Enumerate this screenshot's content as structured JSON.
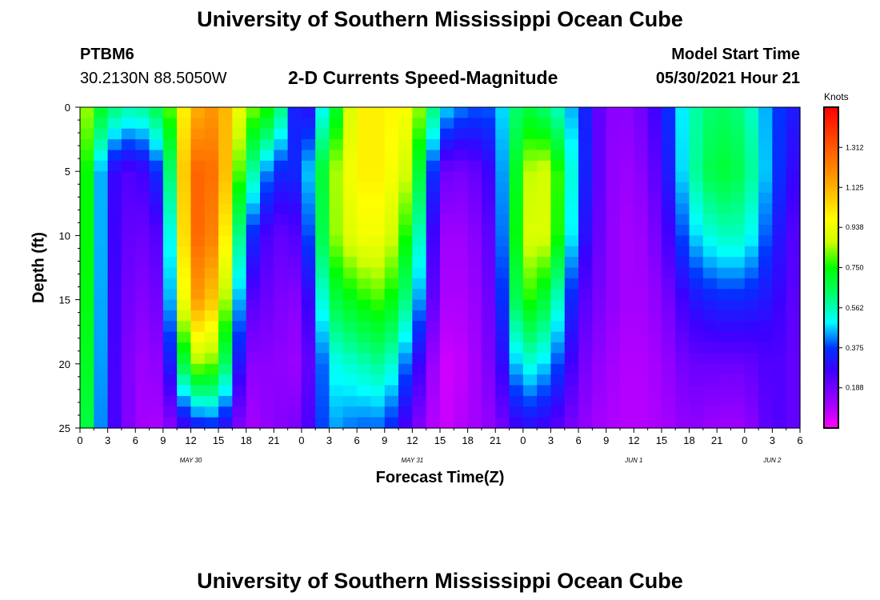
{
  "page": {
    "title_top": "University of Southern Mississippi Ocean Cube",
    "title_bottom": "University of Southern Mississippi Ocean Cube",
    "station_id": "PTBM6",
    "coordinates": "30.2130N  88.5050W",
    "product_title": "2-D Currents Speed-Magnitude",
    "model_start_label": "Model Start Time",
    "model_start_value": "05/30/2021 Hour 21"
  },
  "chart_data": {
    "type": "heatmap",
    "title": "2-D Currents Speed-Magnitude",
    "xlabel": "Forecast Time(Z)",
    "ylabel": "Depth (ft)",
    "colorbar_label": "Knots",
    "x_range_hours": [
      0,
      78
    ],
    "y_range_ft": [
      0,
      25
    ],
    "x_ticks": [
      {
        "hour": 0,
        "label": "0"
      },
      {
        "hour": 3,
        "label": "3"
      },
      {
        "hour": 6,
        "label": "6"
      },
      {
        "hour": 9,
        "label": "9"
      },
      {
        "hour": 12,
        "label": "12"
      },
      {
        "hour": 15,
        "label": "15"
      },
      {
        "hour": 18,
        "label": "18"
      },
      {
        "hour": 21,
        "label": "21"
      },
      {
        "hour": 24,
        "label": "0"
      },
      {
        "hour": 27,
        "label": "3"
      },
      {
        "hour": 30,
        "label": "6"
      },
      {
        "hour": 33,
        "label": "9"
      },
      {
        "hour": 36,
        "label": "12"
      },
      {
        "hour": 39,
        "label": "15"
      },
      {
        "hour": 42,
        "label": "18"
      },
      {
        "hour": 45,
        "label": "21"
      },
      {
        "hour": 48,
        "label": "0"
      },
      {
        "hour": 51,
        "label": "3"
      },
      {
        "hour": 54,
        "label": "6"
      },
      {
        "hour": 57,
        "label": "9"
      },
      {
        "hour": 60,
        "label": "12"
      },
      {
        "hour": 63,
        "label": "15"
      },
      {
        "hour": 66,
        "label": "18"
      },
      {
        "hour": 69,
        "label": "21"
      },
      {
        "hour": 72,
        "label": "0"
      },
      {
        "hour": 75,
        "label": "3"
      },
      {
        "hour": 78,
        "label": "6"
      }
    ],
    "date_labels": [
      {
        "hour": 12,
        "label": "MAY 30"
      },
      {
        "hour": 36,
        "label": "MAY 31"
      },
      {
        "hour": 60,
        "label": "JUN 1"
      },
      {
        "hour": 75,
        "label": "JUN 2"
      }
    ],
    "y_ticks": [
      0,
      5,
      10,
      15,
      20,
      25
    ],
    "colorbar_range": [
      0,
      1.5
    ],
    "colorbar_ticks": [
      0.188,
      0.375,
      0.562,
      0.75,
      0.938,
      1.125,
      1.312
    ],
    "colorbar_tick_labels": [
      "0.188",
      "0.375",
      "0.562",
      "0.750",
      "0.938",
      "1.125",
      "1.312"
    ],
    "grid_spec": {
      "hour_step": 1.5,
      "depth_step": 0.8333,
      "hours": [
        0,
        3,
        6,
        9,
        12,
        15,
        18,
        21,
        24,
        27,
        30,
        33,
        36,
        39,
        42,
        45,
        48,
        51,
        54,
        57,
        60,
        63,
        66,
        69,
        72,
        75,
        78
      ],
      "depths": [
        0,
        5,
        10,
        15,
        20,
        25
      ],
      "speed_knots": [
        [
          0.9,
          0.9,
          0.9,
          0.88,
          0.85,
          0.8
        ],
        [
          0.65,
          0.3,
          0.3,
          0.3,
          0.3,
          0.3
        ],
        [
          0.55,
          0.22,
          0.18,
          0.15,
          0.12,
          0.12
        ],
        [
          0.7,
          0.4,
          0.25,
          0.2,
          0.15,
          0.1
        ],
        [
          1.1,
          1.3,
          1.3,
          1.2,
          0.85,
          0.3
        ],
        [
          1.2,
          1.25,
          1.2,
          1.05,
          0.8,
          0.35
        ],
        [
          0.85,
          0.65,
          0.4,
          0.25,
          0.15,
          0.1
        ],
        [
          0.75,
          0.35,
          0.2,
          0.18,
          0.15,
          0.15
        ],
        [
          0.2,
          0.35,
          0.25,
          0.15,
          0.12,
          0.18
        ],
        [
          0.6,
          0.8,
          0.8,
          0.65,
          0.5,
          0.45
        ],
        [
          1.0,
          1.0,
          0.95,
          0.75,
          0.55,
          0.4
        ],
        [
          1.0,
          1.0,
          0.95,
          0.8,
          0.6,
          0.4
        ],
        [
          0.95,
          0.85,
          0.7,
          0.55,
          0.35,
          0.2
        ],
        [
          0.5,
          0.2,
          0.12,
          0.1,
          0.05,
          0.05
        ],
        [
          0.4,
          0.18,
          0.12,
          0.1,
          0.08,
          0.1
        ],
        [
          0.4,
          0.3,
          0.25,
          0.22,
          0.2,
          0.15
        ],
        [
          0.7,
          0.85,
          0.9,
          0.8,
          0.55,
          0.3
        ],
        [
          0.6,
          0.9,
          0.9,
          0.65,
          0.45,
          0.25
        ],
        [
          0.4,
          0.4,
          0.35,
          0.25,
          0.2,
          0.15
        ],
        [
          0.15,
          0.15,
          0.15,
          0.15,
          0.12,
          0.1
        ],
        [
          0.15,
          0.12,
          0.1,
          0.1,
          0.08,
          0.08
        ],
        [
          0.3,
          0.25,
          0.2,
          0.15,
          0.12,
          0.1
        ],
        [
          0.55,
          0.55,
          0.45,
          0.3,
          0.2,
          0.15
        ],
        [
          0.65,
          0.7,
          0.55,
          0.35,
          0.2,
          0.12
        ],
        [
          0.6,
          0.65,
          0.55,
          0.35,
          0.2,
          0.12
        ],
        [
          0.4,
          0.4,
          0.35,
          0.3,
          0.25,
          0.25
        ],
        [
          0.3,
          0.25,
          0.2,
          0.2,
          0.2,
          0.2
        ]
      ]
    }
  }
}
